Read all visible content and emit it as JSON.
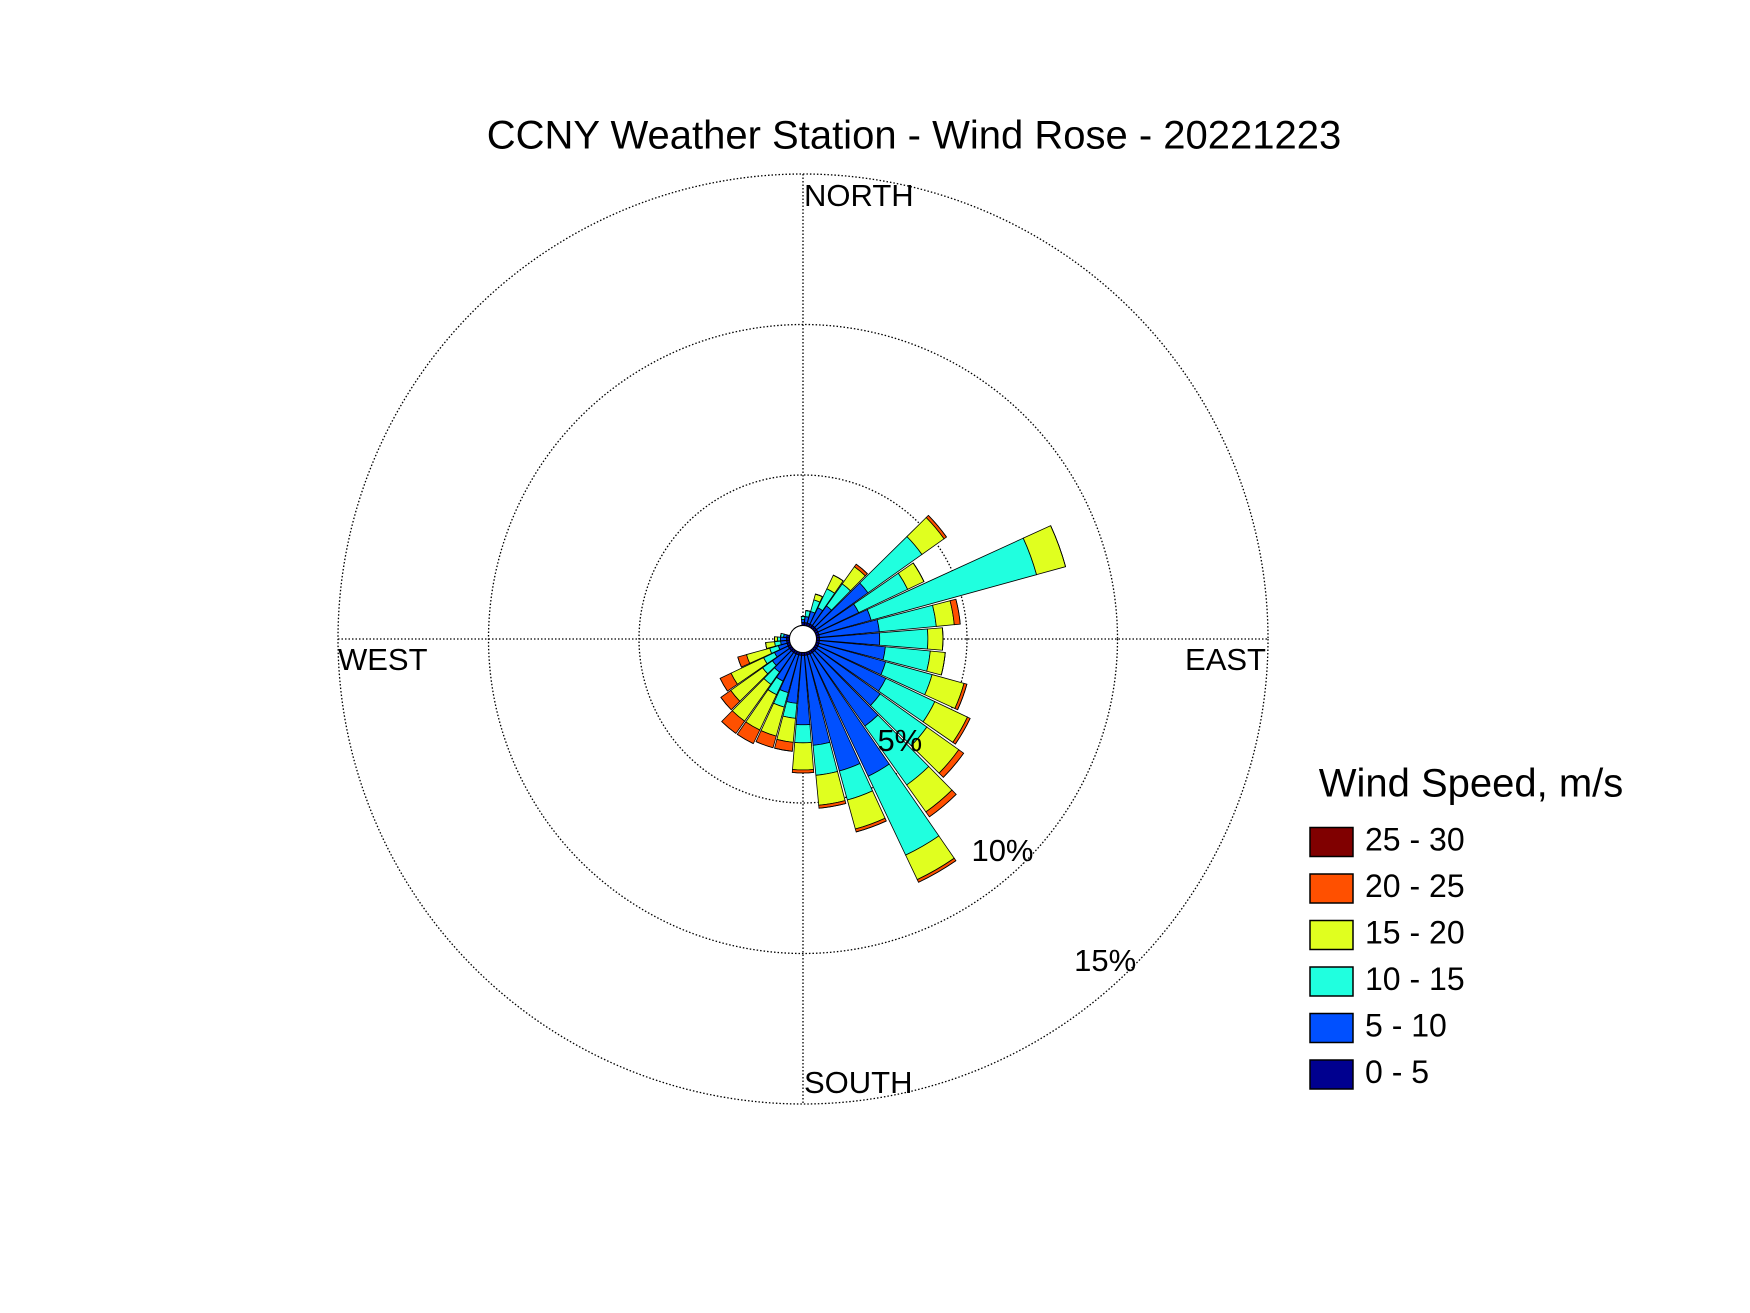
{
  "chart_data": {
    "type": "windrose",
    "title": "CCNY Weather Station - Wind Rose - 20221223",
    "direction_labels": [
      "NORTH",
      "EAST",
      "SOUTH",
      "WEST"
    ],
    "theta": [
      0,
      10,
      20,
      30,
      40,
      50,
      60,
      70,
      80,
      90,
      100,
      110,
      120,
      130,
      140,
      150,
      160,
      170,
      180,
      190,
      200,
      210,
      220,
      230,
      240,
      250,
      260,
      270,
      280,
      290,
      300,
      310,
      320,
      330,
      340,
      350
    ],
    "rlim": [
      0,
      15
    ],
    "rticks": [
      {
        "value": 5,
        "label": "5%"
      },
      {
        "value": 10,
        "label": "10%"
      },
      {
        "value": 15,
        "label": "15%"
      }
    ],
    "legend_title": "Wind Speed, m/s",
    "series": [
      {
        "name": "0 - 5",
        "color": "#00008f",
        "values": [
          0.1,
          0.1,
          0.1,
          0.1,
          0.1,
          0.1,
          0.1,
          0.1,
          0.1,
          0.1,
          0.1,
          0.1,
          0.1,
          0.1,
          0.1,
          0.1,
          0.1,
          0.1,
          0.1,
          0.1,
          0.1,
          0.1,
          0.1,
          0.1,
          0.1,
          0.1,
          0.1,
          0.1,
          0.1,
          0,
          0,
          0,
          0,
          0,
          0,
          0
        ]
      },
      {
        "name": "5 - 10",
        "color": "#0050ff",
        "values": [
          0.1,
          0.2,
          0.4,
          0.6,
          0.8,
          2.1,
          1.5,
          1.8,
          2.0,
          2.0,
          2.2,
          2.3,
          2.5,
          2.6,
          3.0,
          4.5,
          4.0,
          3.0,
          2.3,
          1.6,
          1.3,
          1.0,
          0.8,
          0.7,
          0.5,
          0.3,
          0.2,
          0.2,
          0.1,
          0,
          0,
          0,
          0,
          0,
          0,
          0
        ]
      },
      {
        "name": "10 - 15",
        "color": "#20ffdf",
        "values": [
          0.1,
          0.2,
          0.4,
          0.7,
          0.9,
          2.2,
          1.8,
          5.7,
          1.9,
          1.6,
          1.5,
          1.6,
          1.8,
          1.9,
          2.4,
          2.9,
          1.0,
          1.0,
          0.6,
          0.5,
          0.5,
          0.5,
          0.5,
          0.4,
          0.4,
          0.3,
          0.2,
          0.1,
          0.1,
          0,
          0,
          0,
          0,
          0,
          0,
          0
        ]
      },
      {
        "name": "15 - 20",
        "color": "#e0ff1f",
        "values": [
          0,
          0,
          0.2,
          0.5,
          0.7,
          0.9,
          0.6,
          1.0,
          0.6,
          0.5,
          0.5,
          1.1,
          1.2,
          1.3,
          1.1,
          0.9,
          1.0,
          1.0,
          0.9,
          0.8,
          1.0,
          1.3,
          1.5,
          1.3,
          1.2,
          0.8,
          0.3,
          0.1,
          0,
          0,
          0,
          0,
          0,
          0,
          0,
          0
        ]
      },
      {
        "name": "20 - 25",
        "color": "#ff5000",
        "values": [
          0,
          0,
          0,
          0,
          0.1,
          0.1,
          0,
          0,
          0.2,
          0,
          0,
          0.1,
          0.1,
          0.2,
          0.2,
          0.1,
          0.1,
          0.1,
          0.1,
          0.3,
          0.4,
          0.5,
          0.5,
          0.4,
          0.4,
          0.3,
          0,
          0,
          0,
          0,
          0,
          0,
          0,
          0,
          0,
          0
        ]
      },
      {
        "name": "25 - 30",
        "color": "#800000",
        "values": [
          0,
          0,
          0,
          0,
          0,
          0,
          0,
          0,
          0,
          0,
          0,
          0,
          0,
          0,
          0,
          0,
          0,
          0,
          0,
          0,
          0,
          0,
          0,
          0,
          0,
          0,
          0,
          0,
          0,
          0,
          0,
          0,
          0,
          0,
          0,
          0
        ]
      }
    ]
  }
}
